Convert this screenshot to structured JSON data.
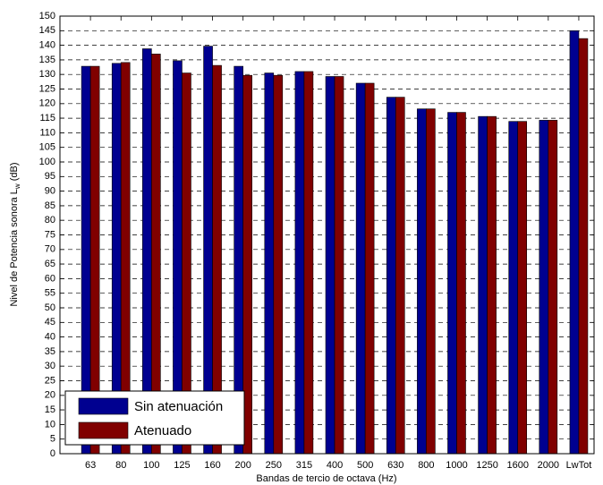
{
  "chart_data": {
    "type": "bar",
    "xlabel": "Bandas de tercio de octava (Hz)",
    "ylabel": {
      "main": "Nivel de Potencia sonora L",
      "sub": "w",
      "suffix": " (dB)"
    },
    "categories": [
      "63",
      "80",
      "100",
      "125",
      "160",
      "200",
      "250",
      "315",
      "400",
      "500",
      "630",
      "800",
      "1000",
      "1250",
      "1600",
      "2000",
      "LwTot"
    ],
    "series": [
      {
        "name": "Sin atenuación",
        "color": "#000090",
        "values": [
          132.8,
          133.8,
          138.8,
          134.7,
          139.7,
          132.8,
          130.5,
          131.0,
          129.3,
          127.0,
          122.2,
          118.2,
          117.0,
          115.6,
          113.9,
          114.3,
          145.0
        ]
      },
      {
        "name": "Atenuado",
        "color": "#800000",
        "values": [
          132.8,
          134.1,
          137.0,
          130.5,
          133.1,
          129.7,
          129.7,
          131.0,
          129.3,
          127.0,
          122.2,
          118.2,
          117.0,
          115.6,
          113.9,
          114.3,
          142.3
        ]
      }
    ],
    "ylim": [
      0,
      150
    ],
    "yticks": [
      0,
      5,
      10,
      15,
      20,
      25,
      30,
      35,
      40,
      45,
      50,
      55,
      60,
      65,
      70,
      75,
      80,
      85,
      90,
      95,
      100,
      105,
      110,
      115,
      120,
      125,
      130,
      135,
      140,
      145,
      150
    ],
    "grid": true,
    "legend": "lower left"
  }
}
